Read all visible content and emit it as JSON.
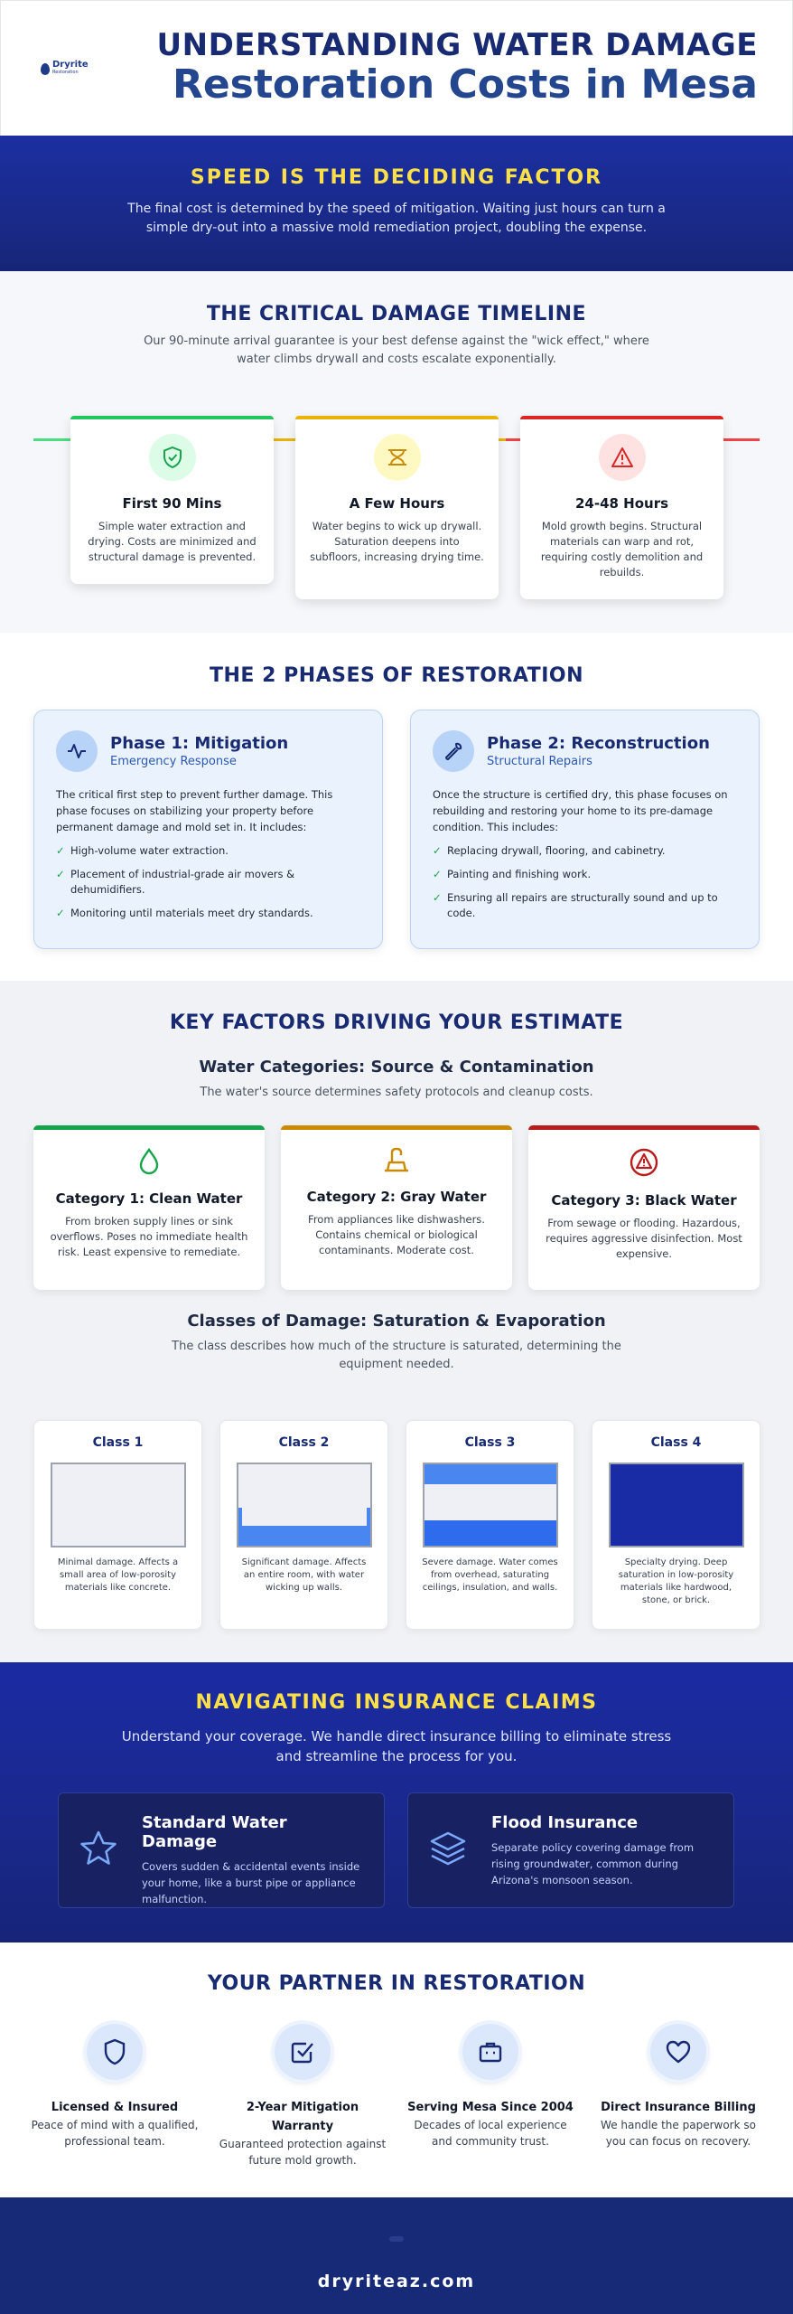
{
  "header": {
    "logo_text": "Dryrite",
    "logo_sub": "Restoration",
    "title_line1": "UNDERSTANDING WATER DAMAGE",
    "title_line2": "Restoration Costs in Mesa"
  },
  "speed": {
    "title": "SPEED IS THE DECIDING FACTOR",
    "text": "The final cost is determined by the speed of mitigation. Waiting just hours can turn a simple dry-out into a massive mold remediation project, doubling the expense."
  },
  "timeline": {
    "title": "THE CRITICAL DAMAGE TIMELINE",
    "subtitle": "Our 90-minute arrival guarantee is your best defense against the \"wick effect,\" where water climbs drywall and costs escalate exponentially.",
    "cards": [
      {
        "title": "First 90 Mins",
        "text": "Simple water extraction and drying. Costs are minimized and structural damage is prevented.",
        "icon": "shield-check-icon",
        "color": "#22c55e"
      },
      {
        "title": "A Few Hours",
        "text": "Water begins to wick up drywall. Saturation deepens into subfloors, increasing drying time.",
        "icon": "hourglass-icon",
        "color": "#eab308"
      },
      {
        "title": "24-48 Hours",
        "text": "Mold growth begins. Structural materials can warp and rot, requiring costly demolition and rebuilds.",
        "icon": "warning-icon",
        "color": "#dc2626"
      }
    ]
  },
  "phases": {
    "title": "THE 2 PHASES OF RESTORATION",
    "cards": [
      {
        "title": "Phase 1: Mitigation",
        "subtitle": "Emergency Response",
        "desc": "The critical first step to prevent further damage. This phase focuses on stabilizing your property before permanent damage and mold set in. It includes:",
        "items": [
          "High-volume water extraction.",
          "Placement of industrial-grade air movers & dehumidifiers.",
          "Monitoring until materials meet dry standards."
        ],
        "icon": "pulse-icon"
      },
      {
        "title": "Phase 2: Reconstruction",
        "subtitle": "Structural Repairs",
        "desc": "Once the structure is certified dry, this phase focuses on rebuilding and restoring your home to its pre-damage condition. This includes:",
        "items": [
          "Replacing drywall, flooring, and cabinetry.",
          "Painting and finishing work.",
          "Ensuring all repairs are structurally sound and up to code."
        ],
        "icon": "wrench-icon"
      }
    ]
  },
  "factors": {
    "title": "KEY FACTORS DRIVING YOUR ESTIMATE",
    "categories_title": "Water Categories: Source & Contamination",
    "categories_subtitle": "The water's source determines safety protocols and cleanup costs.",
    "categories": [
      {
        "title": "Category 1: Clean Water",
        "text": "From broken supply lines or sink overflows. Poses no immediate health risk. Least expensive to remediate.",
        "icon": "droplet-icon",
        "color": "#16a34a"
      },
      {
        "title": "Category 2: Gray Water",
        "text": "From appliances like dishwashers. Contains chemical or biological contaminants. Moderate cost.",
        "icon": "sink-icon",
        "color": "#ca8a04"
      },
      {
        "title": "Category 3: Black Water",
        "text": "From sewage or flooding. Hazardous, requires aggressive disinfection. Most expensive.",
        "icon": "hazard-icon",
        "color": "#b91c1c"
      }
    ],
    "classes_title": "Classes of Damage: Saturation & Evaporation",
    "classes_subtitle": "The class describes how much of the structure is saturated, determining the equipment needed.",
    "classes": [
      {
        "title": "Class 1",
        "text": "Minimal damage. Affects a small area of low-porosity materials like concrete."
      },
      {
        "title": "Class 2",
        "text": "Significant damage. Affects an entire room, with water wicking up walls."
      },
      {
        "title": "Class 3",
        "text": "Severe damage. Water comes from overhead, saturating ceilings, insulation, and walls."
      },
      {
        "title": "Class 4",
        "text": "Specialty drying. Deep saturation in low-porosity materials like hardwood, stone, or brick."
      }
    ]
  },
  "insurance": {
    "title": "NAVIGATING INSURANCE CLAIMS",
    "subtitle": "Understand your coverage. We handle direct insurance billing to eliminate stress and streamline the process for you.",
    "cards": [
      {
        "title": "Standard Water Damage",
        "text": "Covers sudden & accidental events inside your home, like a burst pipe or appliance malfunction.",
        "icon": "star-icon"
      },
      {
        "title": "Flood Insurance",
        "text": "Separate policy covering damage from rising groundwater, common during Arizona's monsoon season.",
        "icon": "layers-icon"
      }
    ]
  },
  "partner": {
    "title": "YOUR PARTNER IN RESTORATION",
    "items": [
      {
        "title": "Licensed & Insured",
        "text": "Peace of mind with a qualified, professional team.",
        "icon": "shield-icon"
      },
      {
        "title": "2-Year Mitigation Warranty",
        "text": "Guaranteed protection against future mold growth.",
        "icon": "checkbox-icon"
      },
      {
        "title": "Serving Mesa Since 2004",
        "text": "Decades of local experience and community trust.",
        "icon": "briefcase-icon"
      },
      {
        "title": "Direct Insurance Billing",
        "text": "We handle the paperwork so you can focus on recovery.",
        "icon": "heart-icon"
      }
    ]
  },
  "footer": {
    "url": "dryriteaz.com"
  }
}
